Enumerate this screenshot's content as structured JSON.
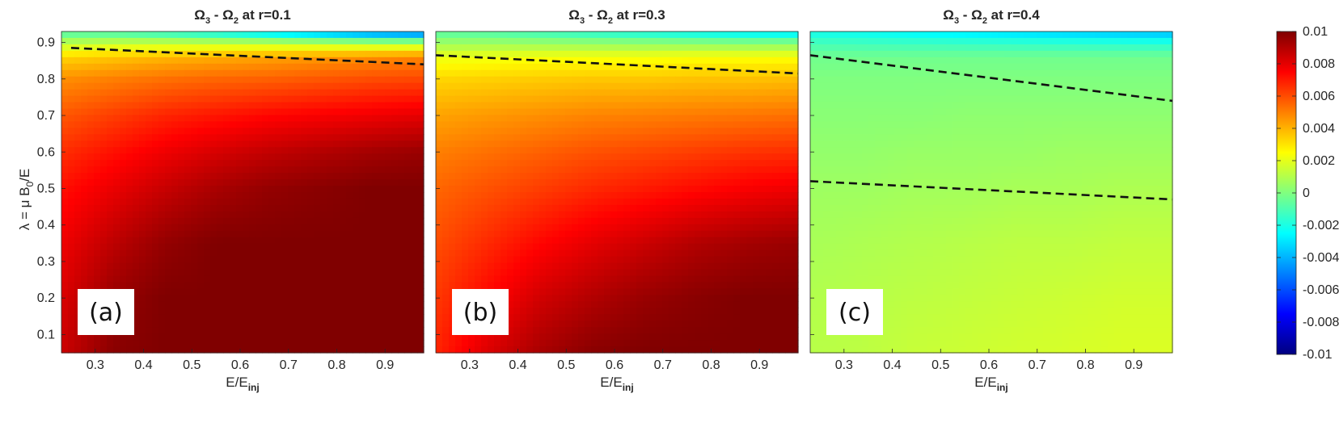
{
  "chart_data": {
    "type": "heatmap",
    "ylabel_parts": {
      "pre": "λ = μ B",
      "sub": "0",
      "post": "/E"
    },
    "xlabel_parts": {
      "pre": "E/E",
      "sub": "inj"
    },
    "xlim": [
      0.23,
      0.98
    ],
    "ylim": [
      0.05,
      0.93
    ],
    "xticks": [
      0.3,
      0.4,
      0.5,
      0.6,
      0.7,
      0.8,
      0.9
    ],
    "yticks": [
      0.1,
      0.2,
      0.3,
      0.4,
      0.5,
      0.6,
      0.7,
      0.8,
      0.9
    ],
    "colorbar": {
      "colormap": "jet",
      "range": [
        -0.01,
        0.01
      ],
      "ticks": [
        "0.01",
        "0.008",
        "0.006",
        "0.004",
        "0.002",
        "0",
        "-0.002",
        "-0.004",
        "-0.006",
        "-0.008",
        "-0.01"
      ],
      "tick_values": [
        0.01,
        0.008,
        0.006,
        0.004,
        0.002,
        0,
        -0.002,
        -0.004,
        -0.006,
        -0.008,
        -0.01
      ]
    },
    "panels": [
      {
        "title": {
          "omega": "Ω",
          "s1": "3",
          "mid": " - Ω",
          "s2": "2",
          "post": " at r=0.1"
        },
        "tag": "(a)",
        "dashed_lines": [
          {
            "x": [
              0.25,
              0.98
            ],
            "y": [
              0.885,
              0.84
            ]
          }
        ],
        "field": [
          {
            "lambda": 0.05,
            "values": [
              0.0085,
              0.0098,
              0.01,
              0.01,
              0.01,
              0.01,
              0.01,
              0.01
            ]
          },
          {
            "lambda": 0.2,
            "values": [
              0.0082,
              0.0095,
              0.01,
              0.01,
              0.01,
              0.01,
              0.01,
              0.01
            ]
          },
          {
            "lambda": 0.35,
            "values": [
              0.0078,
              0.0088,
              0.0096,
              0.01,
              0.01,
              0.01,
              0.01,
              0.01
            ]
          },
          {
            "lambda": 0.5,
            "values": [
              0.0072,
              0.0079,
              0.0086,
              0.0092,
              0.0096,
              0.0098,
              0.01,
              0.01
            ]
          },
          {
            "lambda": 0.6,
            "values": [
              0.0066,
              0.0072,
              0.0078,
              0.0083,
              0.0087,
              0.009,
              0.0093,
              0.0095
            ]
          },
          {
            "lambda": 0.7,
            "values": [
              0.0058,
              0.0063,
              0.0068,
              0.0071,
              0.0074,
              0.0076,
              0.0078,
              0.008
            ]
          },
          {
            "lambda": 0.8,
            "values": [
              0.0047,
              0.005,
              0.0053,
              0.0055,
              0.0056,
              0.0058,
              0.006,
              0.0061
            ]
          },
          {
            "lambda": 0.86,
            "values": [
              0.0033,
              0.0036,
              0.0039,
              0.0041,
              0.0043,
              0.0045,
              0.0047,
              0.0049
            ]
          },
          {
            "lambda": 0.9,
            "values": [
              0.001,
              0.0012,
              0.0012,
              0.0011,
              0.001,
              0.0008,
              0.0006,
              0.0005
            ]
          },
          {
            "lambda": 0.93,
            "values": [
              -0.001,
              -0.0012,
              -0.0018,
              -0.0025,
              -0.0035,
              -0.0045,
              -0.0055,
              -0.006
            ]
          }
        ]
      },
      {
        "title": {
          "omega": "Ω",
          "s1": "3",
          "mid": " - Ω",
          "s2": "2",
          "post": " at r=0.3"
        },
        "tag": "(b)",
        "dashed_lines": [
          {
            "x": [
              0.23,
              0.98
            ],
            "y": [
              0.865,
              0.815
            ]
          }
        ],
        "field": [
          {
            "lambda": 0.05,
            "values": [
              0.0068,
              0.0082,
              0.0092,
              0.0098,
              0.01,
              0.01,
              0.01,
              0.01
            ]
          },
          {
            "lambda": 0.2,
            "values": [
              0.0064,
              0.0074,
              0.0084,
              0.009,
              0.0095,
              0.0098,
              0.01,
              0.01
            ]
          },
          {
            "lambda": 0.35,
            "values": [
              0.006,
              0.0067,
              0.0074,
              0.008,
              0.0085,
              0.009,
              0.0093,
              0.0095
            ]
          },
          {
            "lambda": 0.5,
            "values": [
              0.0055,
              0.0059,
              0.0063,
              0.0067,
              0.007,
              0.0073,
              0.0076,
              0.0078
            ]
          },
          {
            "lambda": 0.6,
            "values": [
              0.005,
              0.0053,
              0.0056,
              0.0059,
              0.0061,
              0.0063,
              0.0065,
              0.0066
            ]
          },
          {
            "lambda": 0.7,
            "values": [
              0.0043,
              0.0045,
              0.0047,
              0.0049,
              0.005,
              0.0051,
              0.0052,
              0.0053
            ]
          },
          {
            "lambda": 0.8,
            "values": [
              0.0033,
              0.0034,
              0.0035,
              0.0036,
              0.0036,
              0.0037,
              0.0037,
              0.0038
            ]
          },
          {
            "lambda": 0.86,
            "values": [
              0.0021,
              0.0022,
              0.0023,
              0.0023,
              0.0023,
              0.0024,
              0.0024,
              0.0024
            ]
          },
          {
            "lambda": 0.9,
            "values": [
              0.0005,
              0.0005,
              0.0004,
              0.0003,
              0.0002,
              0.0001,
              0,
              0
            ]
          },
          {
            "lambda": 0.93,
            "values": [
              -0.0008,
              -0.001,
              -0.0014,
              -0.0018,
              -0.0022,
              -0.0026,
              -0.003,
              -0.0032
            ]
          }
        ]
      },
      {
        "title": {
          "omega": "Ω",
          "s1": "3",
          "mid": " - Ω",
          "s2": "2",
          "post": " at r=0.4"
        },
        "tag": "(c)",
        "dashed_lines": [
          {
            "x": [
              0.23,
              0.98
            ],
            "y": [
              0.865,
              0.74
            ]
          },
          {
            "x": [
              0.23,
              0.98
            ],
            "y": [
              0.52,
              0.47
            ]
          }
        ],
        "field": [
          {
            "lambda": 0.05,
            "values": [
              0.0011,
              0.0012,
              0.0014,
              0.0015,
              0.0016,
              0.0017,
              0.0018,
              0.0018
            ]
          },
          {
            "lambda": 0.2,
            "values": [
              0.001,
              0.0011,
              0.0012,
              0.0013,
              0.0014,
              0.0015,
              0.0016,
              0.0016
            ]
          },
          {
            "lambda": 0.35,
            "values": [
              0.0008,
              0.0009,
              0.001,
              0.0011,
              0.0012,
              0.0012,
              0.0013,
              0.0013
            ]
          },
          {
            "lambda": 0.5,
            "values": [
              0.0006,
              0.0006,
              0.0007,
              0.0007,
              0.0008,
              0.0008,
              0.0009,
              0.0009
            ]
          },
          {
            "lambda": 0.6,
            "values": [
              0.0004,
              0.0004,
              0.0005,
              0.0005,
              0.0005,
              0.0006,
              0.0006,
              0.0006
            ]
          },
          {
            "lambda": 0.7,
            "values": [
              0.0002,
              0.0002,
              0.0002,
              0.0003,
              0.0003,
              0.0003,
              0.0003,
              0.0003
            ]
          },
          {
            "lambda": 0.8,
            "values": [
              0,
              0,
              0,
              0,
              0,
              0,
              0,
              0
            ]
          },
          {
            "lambda": 0.86,
            "values": [
              -0.0003,
              -0.0003,
              -0.0003,
              -0.0003,
              -0.0003,
              -0.0003,
              -0.0003,
              -0.0003
            ]
          },
          {
            "lambda": 0.9,
            "values": [
              -0.0012,
              -0.0013,
              -0.0014,
              -0.0015,
              -0.0016,
              -0.0017,
              -0.0018,
              -0.0019
            ]
          },
          {
            "lambda": 0.93,
            "values": [
              -0.0022,
              -0.0024,
              -0.0027,
              -0.003,
              -0.0033,
              -0.0036,
              -0.0038,
              -0.004
            ]
          }
        ]
      }
    ]
  }
}
